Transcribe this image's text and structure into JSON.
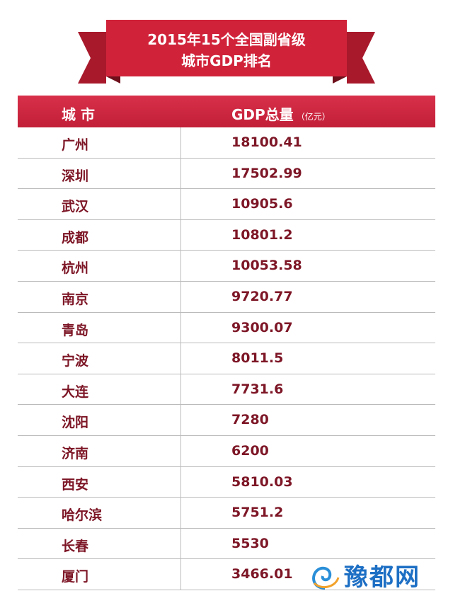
{
  "header": {
    "title_line1": "2015年15个全国副省级",
    "title_line2": "城市GDP排名"
  },
  "table": {
    "columns": [
      "城 市",
      "GDP总量"
    ],
    "unit": "（亿元）",
    "rows": [
      [
        "广州",
        "18100.41"
      ],
      [
        "深圳",
        "17502.99"
      ],
      [
        "武汉",
        "10905.6"
      ],
      [
        "成都",
        "10801.2"
      ],
      [
        "杭州",
        "10053.58"
      ],
      [
        "南京",
        "9720.77"
      ],
      [
        "青岛",
        "9300.07"
      ],
      [
        "宁波",
        "8011.5"
      ],
      [
        "大连",
        "7731.6"
      ],
      [
        "沈阳",
        "7280"
      ],
      [
        "济南",
        "6200"
      ],
      [
        "西安",
        "5810.03"
      ],
      [
        "哈尔滨",
        "5751.2"
      ],
      [
        "长春",
        "5530"
      ],
      [
        "厦门",
        "3466.01"
      ]
    ]
  },
  "watermark": "豫都网"
}
